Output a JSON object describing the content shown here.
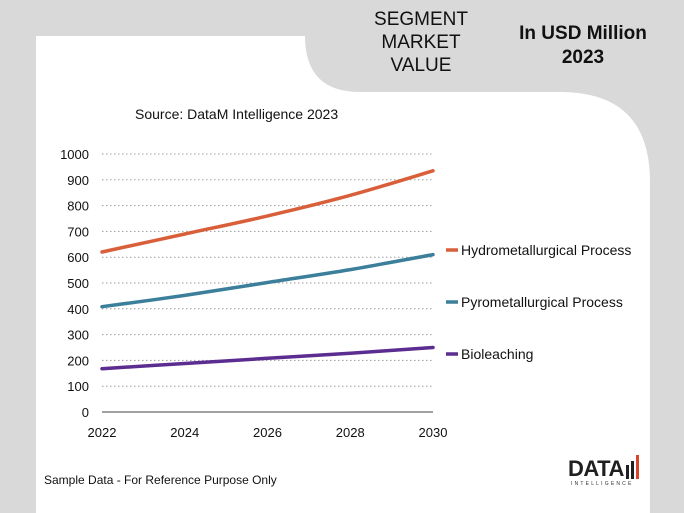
{
  "header": {
    "segment_title": [
      "SEGMENT",
      "MARKET",
      "VALUE"
    ],
    "unit_title": [
      "In USD Million",
      "2023"
    ]
  },
  "source": "Source: DataM Intelligence  2023",
  "footer": "Sample Data - For Reference Purpose Only",
  "logo": {
    "word": "DATA",
    "sub": "INTELLIGENCE"
  },
  "colors": {
    "background": "#d9d9d9",
    "panel": "#ffffff",
    "hydro": "#d95f3b",
    "pyro": "#3b7f9b",
    "bio": "#5c2d91",
    "logo_accent": "#d9452b"
  },
  "chart_data": {
    "type": "line",
    "x": [
      2022,
      2024,
      2026,
      2028,
      2030
    ],
    "ylim": [
      0,
      1000
    ],
    "yticks": [
      0,
      100,
      200,
      300,
      400,
      500,
      600,
      700,
      800,
      900,
      1000
    ],
    "grid": "dotted horizontal",
    "legend_position": "right",
    "series": [
      {
        "name": "Hydrometallurgical Process",
        "color": "#d95f3b",
        "values": [
          620,
          690,
          760,
          840,
          935
        ]
      },
      {
        "name": "Pyrometallurgical Process",
        "color": "#3b7f9b",
        "values": [
          408,
          452,
          502,
          552,
          610
        ]
      },
      {
        "name": "Bioleaching",
        "color": "#5c2d91",
        "values": [
          168,
          188,
          208,
          228,
          250
        ]
      }
    ]
  }
}
